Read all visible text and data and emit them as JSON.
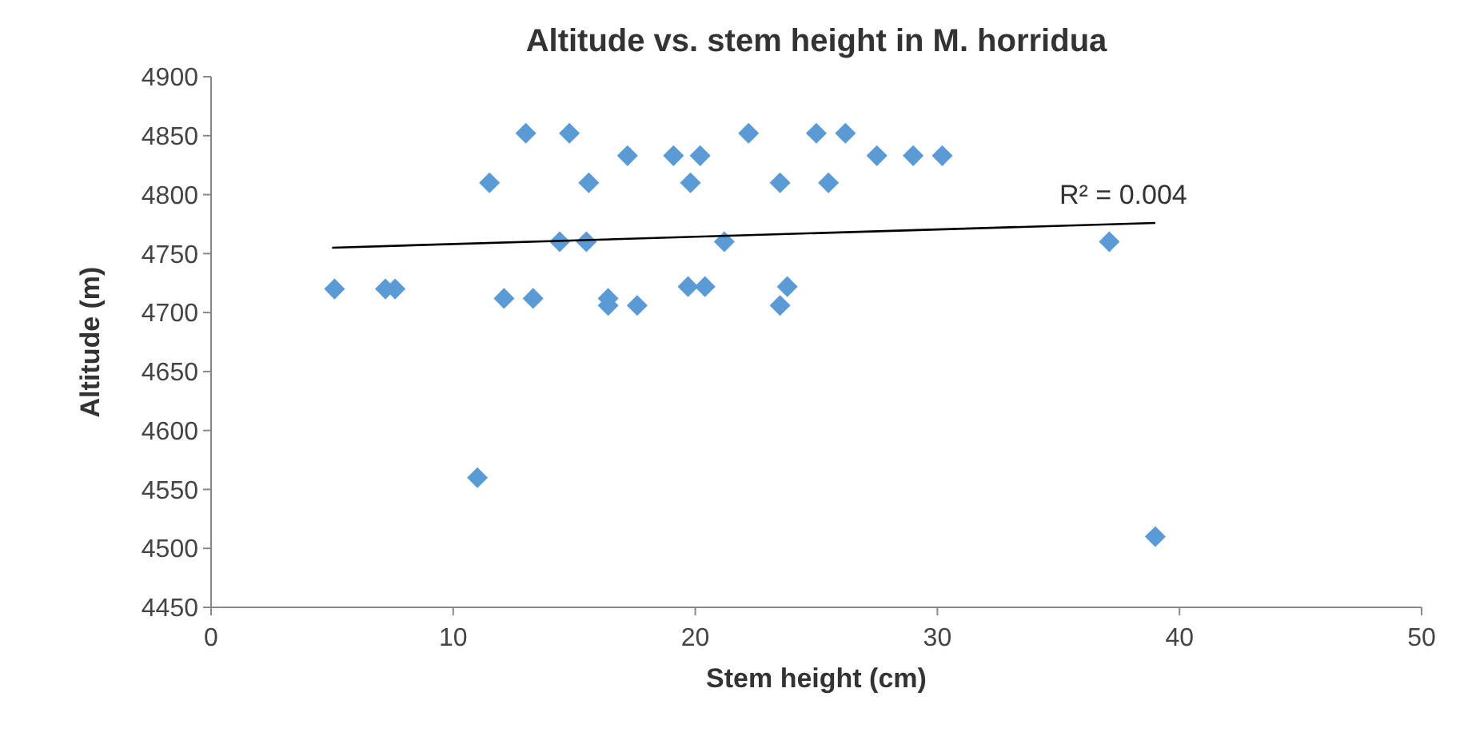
{
  "chart_data": {
    "type": "scatter",
    "title": "Altitude vs. stem height in M. horridua",
    "xlabel": "Stem height (cm)",
    "ylabel": "Altitude (m)",
    "xlim": [
      0,
      50
    ],
    "xticks": [
      0,
      10,
      20,
      30,
      40,
      50
    ],
    "ylim": [
      4450,
      4900
    ],
    "yticks": [
      4450,
      4500,
      4550,
      4600,
      4650,
      4700,
      4750,
      4800,
      4850,
      4900
    ],
    "grid": false,
    "annotations": [
      "R² = 0.004"
    ],
    "series": [
      {
        "color": "#5b9bd5",
        "marker": "diamond",
        "x": [
          5.1,
          7.2,
          7.6,
          11.0,
          11.5,
          12.1,
          13.0,
          13.3,
          14.4,
          14.8,
          15.5,
          15.6,
          16.4,
          16.4,
          17.2,
          17.6,
          19.1,
          19.7,
          19.8,
          20.2,
          20.4,
          21.2,
          22.2,
          23.5,
          23.5,
          23.8,
          25.0,
          25.5,
          26.2,
          27.5,
          29.0,
          30.2,
          37.1,
          39.0
        ],
        "values": [
          4720,
          4720,
          4720,
          4560,
          4810,
          4712,
          4852,
          4712,
          4760,
          4852,
          4760,
          4810,
          4712,
          4706,
          4833,
          4706,
          4833,
          4722,
          4810,
          4833,
          4722,
          4760,
          4852,
          4810,
          4706,
          4722,
          4852,
          4810,
          4852,
          4833,
          4833,
          4833,
          4760,
          4510
        ]
      },
      {
        "type": "line",
        "color": "#000000",
        "x": [
          5,
          39
        ],
        "values": [
          4755,
          4776
        ]
      }
    ]
  }
}
